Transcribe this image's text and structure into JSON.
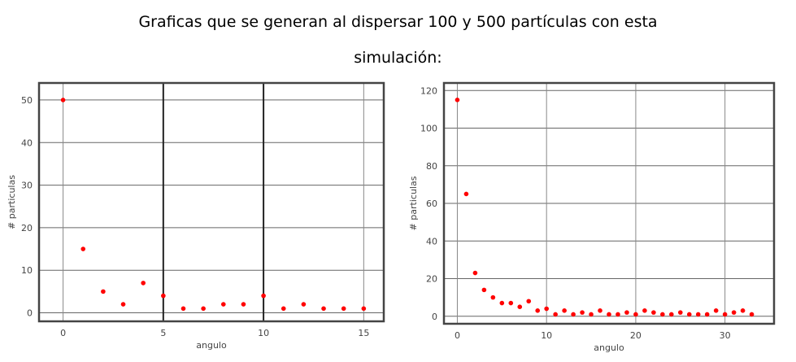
{
  "caption": {
    "line1": "Graficas que se generan al dispersar 100 y 500 partículas con esta",
    "line2": "simulación:"
  },
  "chart_data": [
    {
      "type": "scatter",
      "title": "",
      "xlabel": "angulo",
      "ylabel": "# particulas",
      "xlim": [
        -1.2,
        16
      ],
      "ylim": [
        -2,
        54
      ],
      "xticks": [
        0,
        5,
        10,
        15
      ],
      "yticks": [
        0,
        10,
        20,
        30,
        40,
        50
      ],
      "x_major_lines": [
        5,
        10
      ],
      "grid": true,
      "color": "#ff0000",
      "series": [
        {
          "x": [
            0,
            1,
            2,
            3,
            4,
            5,
            6,
            7,
            8,
            9,
            10,
            11,
            12,
            13,
            14,
            15
          ],
          "y": [
            50,
            15,
            5,
            2,
            7,
            4,
            1,
            1,
            2,
            2,
            4,
            1,
            2,
            1,
            1,
            1
          ]
        }
      ]
    },
    {
      "type": "scatter",
      "title": "",
      "xlabel": "angulo",
      "ylabel": "# particulas",
      "xlim": [
        -1.5,
        35.5
      ],
      "ylim": [
        -4,
        124
      ],
      "xticks": [
        0,
        10,
        20,
        30
      ],
      "yticks": [
        0,
        20,
        40,
        60,
        80,
        100,
        120
      ],
      "grid": true,
      "color": "#ff0000",
      "series": [
        {
          "x": [
            0,
            1,
            2,
            3,
            4,
            5,
            6,
            7,
            8,
            9,
            10,
            11,
            12,
            13,
            14,
            15,
            16,
            17,
            18,
            19,
            20,
            21,
            22,
            23,
            24,
            25,
            26,
            27,
            28,
            29,
            30,
            31,
            32,
            33
          ],
          "y": [
            115,
            65,
            23,
            14,
            10,
            7,
            7,
            5,
            8,
            3,
            4,
            1,
            3,
            1,
            2,
            1,
            3,
            1,
            1,
            2,
            1,
            3,
            2,
            1,
            1,
            2,
            1,
            1,
            1,
            3,
            1,
            2,
            3,
            1
          ]
        }
      ]
    }
  ]
}
